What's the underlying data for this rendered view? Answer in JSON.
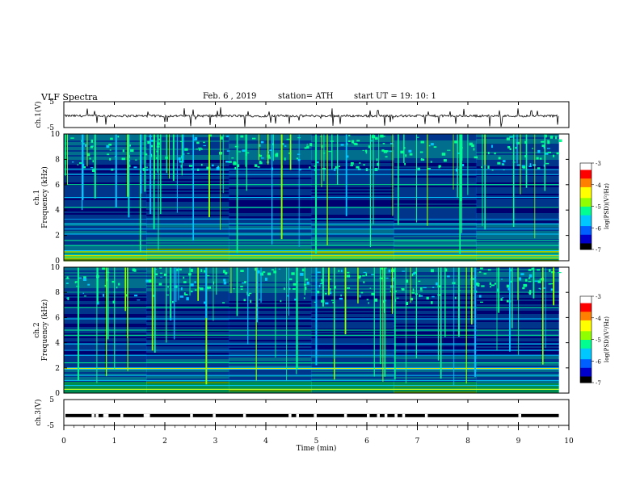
{
  "header": {
    "title": "VLF  Spectra",
    "date": "Feb. 6  , 2019",
    "station": "station= ATH",
    "start": "start  UT  =    19: 10: 1"
  },
  "chart_data": [
    {
      "type": "line",
      "panel": "ch1-voltage",
      "ylabel": "ch.1(V)",
      "ylim": [
        -5,
        5
      ],
      "yticks": [
        "5",
        "-5"
      ],
      "xlim": [
        0,
        10
      ],
      "series": [
        {
          "values_approx": "noisy trace near -0.5 V with frequent short negative spikes"
        }
      ],
      "color": "#000000"
    },
    {
      "type": "heatmap",
      "panel": "ch1-spectrogram",
      "ylabel": "ch.1\nFrequency (kHz)",
      "ylim": [
        0,
        10
      ],
      "yticks": [
        "0",
        "2",
        "4",
        "6",
        "8",
        "10"
      ],
      "xlim": [
        0,
        9.8
      ],
      "colorbar": {
        "label": "log(PSD)(V²/Hz)",
        "ticks": [
          "-3",
          "-4",
          "-5",
          "-6",
          "-7"
        ],
        "range": [
          -7,
          -3
        ]
      },
      "horizontal_lines_khz": [
        0.3,
        0.5,
        0.8,
        1.2,
        1.6,
        2.1,
        2.5,
        2.9,
        3.3,
        4.2,
        5.0,
        6.0,
        6.8,
        7.2
      ],
      "bright_bands_khz": [
        0.2,
        0.4,
        0.7
      ]
    },
    {
      "type": "heatmap",
      "panel": "ch2-spectrogram",
      "ylabel": "ch.2\nFrequency (kHz)",
      "ylim": [
        0,
        10
      ],
      "yticks": [
        "0",
        "2",
        "4",
        "6",
        "8",
        "10"
      ],
      "xlim": [
        0,
        9.8
      ],
      "colorbar": {
        "label": "log(PSD)(V²/Hz)",
        "ticks": [
          "-3",
          "-4",
          "-5",
          "-6",
          "-7"
        ],
        "range": [
          -7,
          -3
        ]
      },
      "horizontal_lines_khz": [
        0.3,
        0.6,
        1.0,
        1.4,
        1.9,
        2.0,
        2.4,
        3.0,
        3.4,
        3.9,
        4.6,
        5.0,
        5.9,
        6.8
      ],
      "bright_bands_khz": [
        1.95,
        0.3
      ]
    },
    {
      "type": "line",
      "panel": "ch3-voltage",
      "ylabel": "ch.3(V)",
      "ylim": [
        -5,
        5
      ],
      "yticks": [
        "5",
        "-5"
      ],
      "xlim": [
        0,
        10
      ],
      "xlabel": "Time  (min)",
      "xticks": [
        "0",
        "1",
        "2",
        "3",
        "4",
        "5",
        "6",
        "7",
        "8",
        "9",
        "10"
      ],
      "series": [
        {
          "level_v": -1.2,
          "gaps_min": [
            0.55,
            0.63,
            0.78,
            0.83,
            1.12,
            1.58,
            1.62,
            1.65,
            2.5,
            2.95,
            3.55,
            4.45,
            4.6,
            4.95,
            5.55,
            6.0,
            6.2,
            6.35,
            6.55,
            6.7,
            7.15,
            9.0
          ]
        }
      ],
      "color": "#000000"
    }
  ],
  "colors": {
    "colormap": [
      "#000000",
      "#0000cc",
      "#0060ff",
      "#00c8ff",
      "#00ff90",
      "#90ff00",
      "#ffff00",
      "#ff8000",
      "#ff0000",
      "#ffffff"
    ],
    "trace": "#000000"
  }
}
